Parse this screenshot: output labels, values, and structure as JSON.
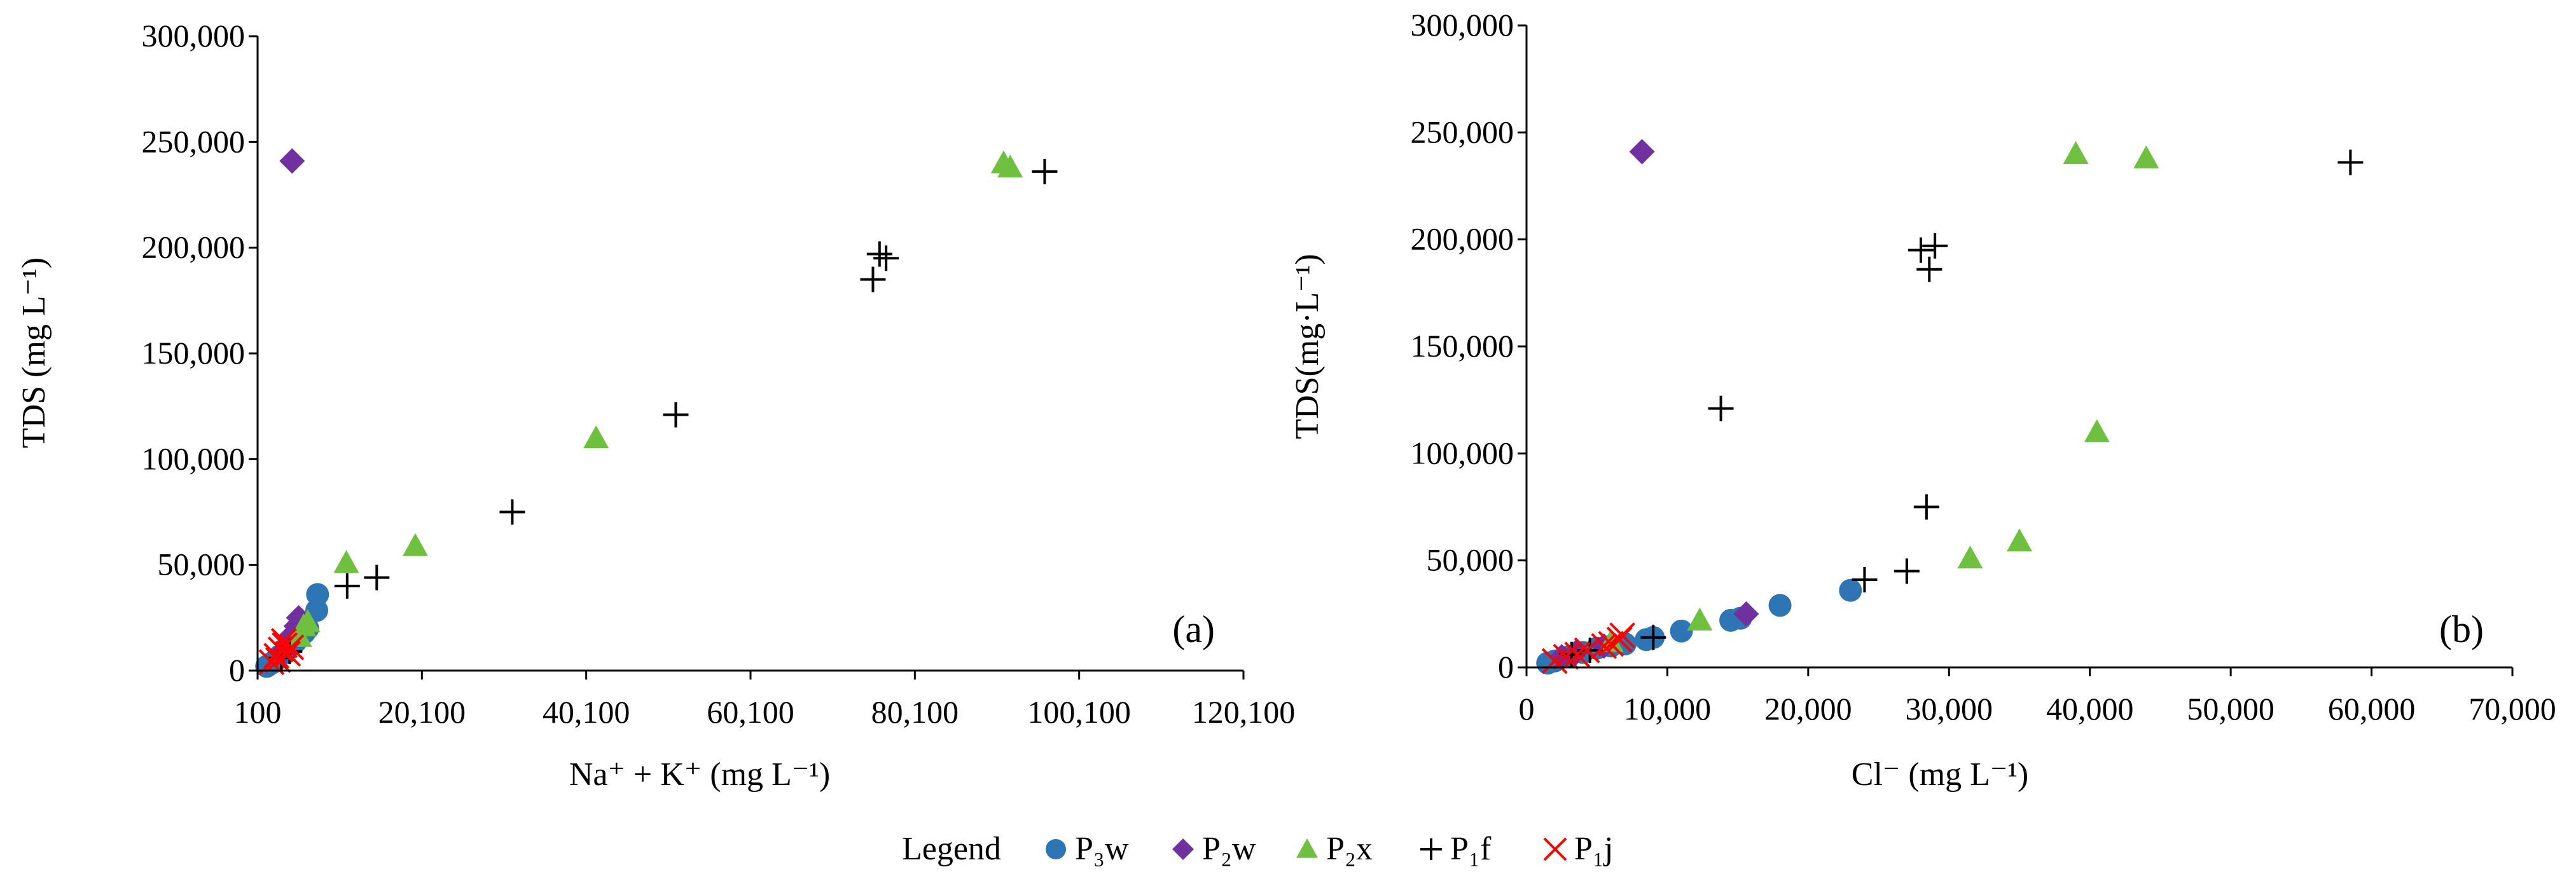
{
  "chart_data": [
    {
      "type": "scatter",
      "panel_label": "(a)",
      "xlabel": "Na⁺ + K⁺ (mg L⁻¹)",
      "ylabel": "TDS (mg L⁻¹)",
      "xlim": [
        100,
        120100
      ],
      "ylim": [
        0,
        300000
      ],
      "x_ticks": [
        100,
        20100,
        40100,
        60100,
        80100,
        100100,
        120100
      ],
      "x_tick_labels": [
        "100",
        "20,100",
        "40,100",
        "60,100",
        "80,100",
        "100,100",
        "120,100"
      ],
      "y_ticks": [
        0,
        50000,
        100000,
        150000,
        200000,
        250000,
        300000
      ],
      "y_tick_labels": [
        "0",
        "50,000",
        "100,000",
        "150,000",
        "200,000",
        "250,000",
        "300,000"
      ],
      "grid": false,
      "series": [
        {
          "name": "P3w",
          "points": [
            [
              1200,
              2000
            ],
            [
              1800,
              3500
            ],
            [
              2300,
              5000
            ],
            [
              2800,
              7000
            ],
            [
              3500,
              9000
            ],
            [
              4200,
              12000
            ],
            [
              4800,
              14000
            ],
            [
              5200,
              16000
            ],
            [
              5800,
              18000
            ],
            [
              6200,
              20000
            ],
            [
              7300,
              28500
            ],
            [
              7400,
              36000
            ]
          ]
        },
        {
          "name": "P2w",
          "points": [
            [
              4300,
              241000
            ],
            [
              3200,
              9000
            ],
            [
              3800,
              13000
            ],
            [
              4300,
              17000
            ],
            [
              4800,
              21000
            ],
            [
              5100,
              25000
            ]
          ]
        },
        {
          "name": "P2x",
          "points": [
            [
              90900,
              240000
            ],
            [
              91700,
              238000
            ],
            [
              41300,
              110000
            ],
            [
              19300,
              59000
            ],
            [
              10900,
              51000
            ],
            [
              5200,
              16000
            ],
            [
              5700,
              21000
            ],
            [
              6200,
              23000
            ]
          ]
        },
        {
          "name": "P1f",
          "points": [
            [
              95900,
              236000
            ],
            [
              75800,
              197000
            ],
            [
              76600,
              195000
            ],
            [
              75000,
              185000
            ],
            [
              51000,
              121000
            ],
            [
              31100,
              75000
            ],
            [
              14600,
              44000
            ],
            [
              11000,
              40000
            ],
            [
              3000,
              6000
            ],
            [
              4000,
              9000
            ]
          ]
        },
        {
          "name": "P1j",
          "points": [
            [
              1800,
              4000
            ],
            [
              2400,
              7000
            ],
            [
              2900,
              10000
            ],
            [
              3400,
              12000
            ],
            [
              3800,
              8000
            ],
            [
              4200,
              11000
            ],
            [
              2600,
              5000
            ],
            [
              3300,
              14000
            ]
          ]
        }
      ]
    },
    {
      "type": "scatter",
      "panel_label": "(b)",
      "xlabel": "Cl⁻ (mg L⁻¹)",
      "ylabel": "TDS(mg·L⁻¹)",
      "xlim": [
        0,
        70000
      ],
      "ylim": [
        0,
        300000
      ],
      "x_ticks": [
        0,
        10000,
        20000,
        30000,
        40000,
        50000,
        60000,
        70000
      ],
      "x_tick_labels": [
        "0",
        "10,000",
        "20,000",
        "30,000",
        "40,000",
        "50,000",
        "60,000",
        "70,000"
      ],
      "y_ticks": [
        0,
        50000,
        100000,
        150000,
        200000,
        250000,
        300000
      ],
      "y_tick_labels": [
        "0",
        "50,000",
        "100,000",
        "150,000",
        "200,000",
        "250,000",
        "300,000"
      ],
      "grid": false,
      "series": [
        {
          "name": "P3w",
          "points": [
            [
              1500,
              2000
            ],
            [
              2000,
              3000
            ],
            [
              3000,
              5000
            ],
            [
              4000,
              7000
            ],
            [
              5000,
              9000
            ],
            [
              6000,
              10000
            ],
            [
              7000,
              11000
            ],
            [
              8500,
              13000
            ],
            [
              9000,
              14000
            ],
            [
              11000,
              17000
            ],
            [
              14500,
              22000
            ],
            [
              15200,
              23000
            ],
            [
              18000,
              29000
            ],
            [
              23000,
              36000
            ]
          ]
        },
        {
          "name": "P2w",
          "points": [
            [
              8200,
              241000
            ],
            [
              15600,
              25000
            ],
            [
              2500,
              5000
            ],
            [
              3500,
              7000
            ],
            [
              5500,
              10000
            ]
          ]
        },
        {
          "name": "P2x",
          "points": [
            [
              39000,
              240000
            ],
            [
              44000,
              238000
            ],
            [
              40500,
              110000
            ],
            [
              35000,
              59000
            ],
            [
              31500,
              51000
            ],
            [
              12300,
              22000
            ],
            [
              6000,
              12000
            ]
          ]
        },
        {
          "name": "P1f",
          "points": [
            [
              58500,
              236000
            ],
            [
              28000,
              195000
            ],
            [
              29000,
              197000
            ],
            [
              28600,
              186000
            ],
            [
              13800,
              121000
            ],
            [
              28400,
              75000
            ],
            [
              27000,
              45000
            ],
            [
              24000,
              41000
            ],
            [
              3200,
              6000
            ],
            [
              4500,
              8000
            ],
            [
              9000,
              14000
            ]
          ]
        },
        {
          "name": "P1j",
          "points": [
            [
              2000,
              3000
            ],
            [
              2800,
              5000
            ],
            [
              3600,
              6000
            ],
            [
              4300,
              8000
            ],
            [
              5500,
              10000
            ],
            [
              6000,
              11000
            ],
            [
              6600,
              13000
            ],
            [
              6800,
              15000
            ]
          ]
        }
      ]
    }
  ],
  "legend": {
    "title": "Legend",
    "items": [
      {
        "label": "P₃w",
        "marker": "circle",
        "color": "#2E75B6"
      },
      {
        "label": "P₂w",
        "marker": "diamond",
        "color": "#7030A0"
      },
      {
        "label": "P₂x",
        "marker": "triangle",
        "color": "#70C040"
      },
      {
        "label": "P₁f",
        "marker": "plus",
        "color": "#000000"
      },
      {
        "label": "P₁j",
        "marker": "cross",
        "color": "#FF0000"
      }
    ]
  }
}
